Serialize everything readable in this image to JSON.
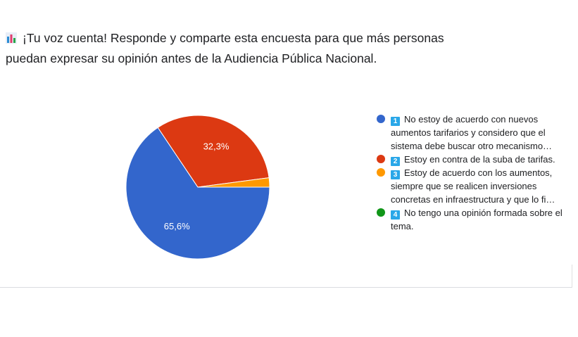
{
  "title": "¡Tu voz cuenta! Responde y comparte esta encuesta para que más personas puedan expresar su opinión antes de la Audiencia Pública Nacional.",
  "title_icon": "bar-chart-emoji-icon",
  "chart_data": {
    "type": "pie",
    "start_angle_deg": 90,
    "slices": [
      {
        "num": "1",
        "label": "No estoy de acuerdo con nuevos aumentos tarifarios y considero que el sistema debe buscar otro mecanismo…",
        "value": 65.6,
        "display": "65,6%",
        "color": "#3366cc"
      },
      {
        "num": "2",
        "label": "Estoy en contra de la suba de tarifas.",
        "value": 32.3,
        "display": "32,3%",
        "color": "#dc3912"
      },
      {
        "num": "3",
        "label": "Estoy de acuerdo con los aumentos, siempre que se realicen inversiones concretas en infraestructura y que lo fi…",
        "value": 2.1,
        "display": "",
        "color": "#ff9900"
      },
      {
        "num": "4",
        "label": "No tengo una opinión formada sobre el tema.",
        "value": 0,
        "display": "",
        "color": "#109618"
      }
    ],
    "legend": "right"
  }
}
